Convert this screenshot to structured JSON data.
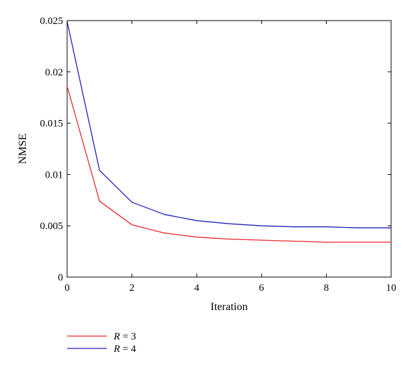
{
  "chart_data": {
    "type": "line",
    "title": "",
    "xlabel": "Iteration",
    "ylabel": "NMSE",
    "xlim": [
      0,
      10
    ],
    "ylim": [
      0,
      0.025
    ],
    "xticks": [
      0,
      2,
      4,
      6,
      8,
      10
    ],
    "xtick_labels": [
      "0",
      "2",
      "4",
      "6",
      "8",
      "10"
    ],
    "yticks": [
      0,
      0.005,
      0.01,
      0.015,
      0.02,
      0.025
    ],
    "ytick_labels": [
      "0",
      "0.005",
      "0.01",
      "0.015",
      "0.02",
      "0.025"
    ],
    "grid": false,
    "legend_position": "bottom-left, below plot",
    "x": [
      0,
      1,
      2,
      3,
      4,
      5,
      6,
      7,
      8,
      9,
      10
    ],
    "series": [
      {
        "name": "R = 3",
        "legend_var": "R",
        "legend_rest": " = 3",
        "color": "#e8242a",
        "values": [
          0.0186,
          0.0074,
          0.0051,
          0.0043,
          0.0039,
          0.0037,
          0.0036,
          0.0035,
          0.0034,
          0.0034,
          0.0034
        ]
      },
      {
        "name": "R = 4",
        "legend_var": "R",
        "legend_rest": " = 4",
        "color": "#1b1fb5",
        "values": [
          0.0249,
          0.0104,
          0.0073,
          0.0061,
          0.0055,
          0.0052,
          0.005,
          0.0049,
          0.0049,
          0.0048,
          0.0048
        ]
      }
    ]
  }
}
